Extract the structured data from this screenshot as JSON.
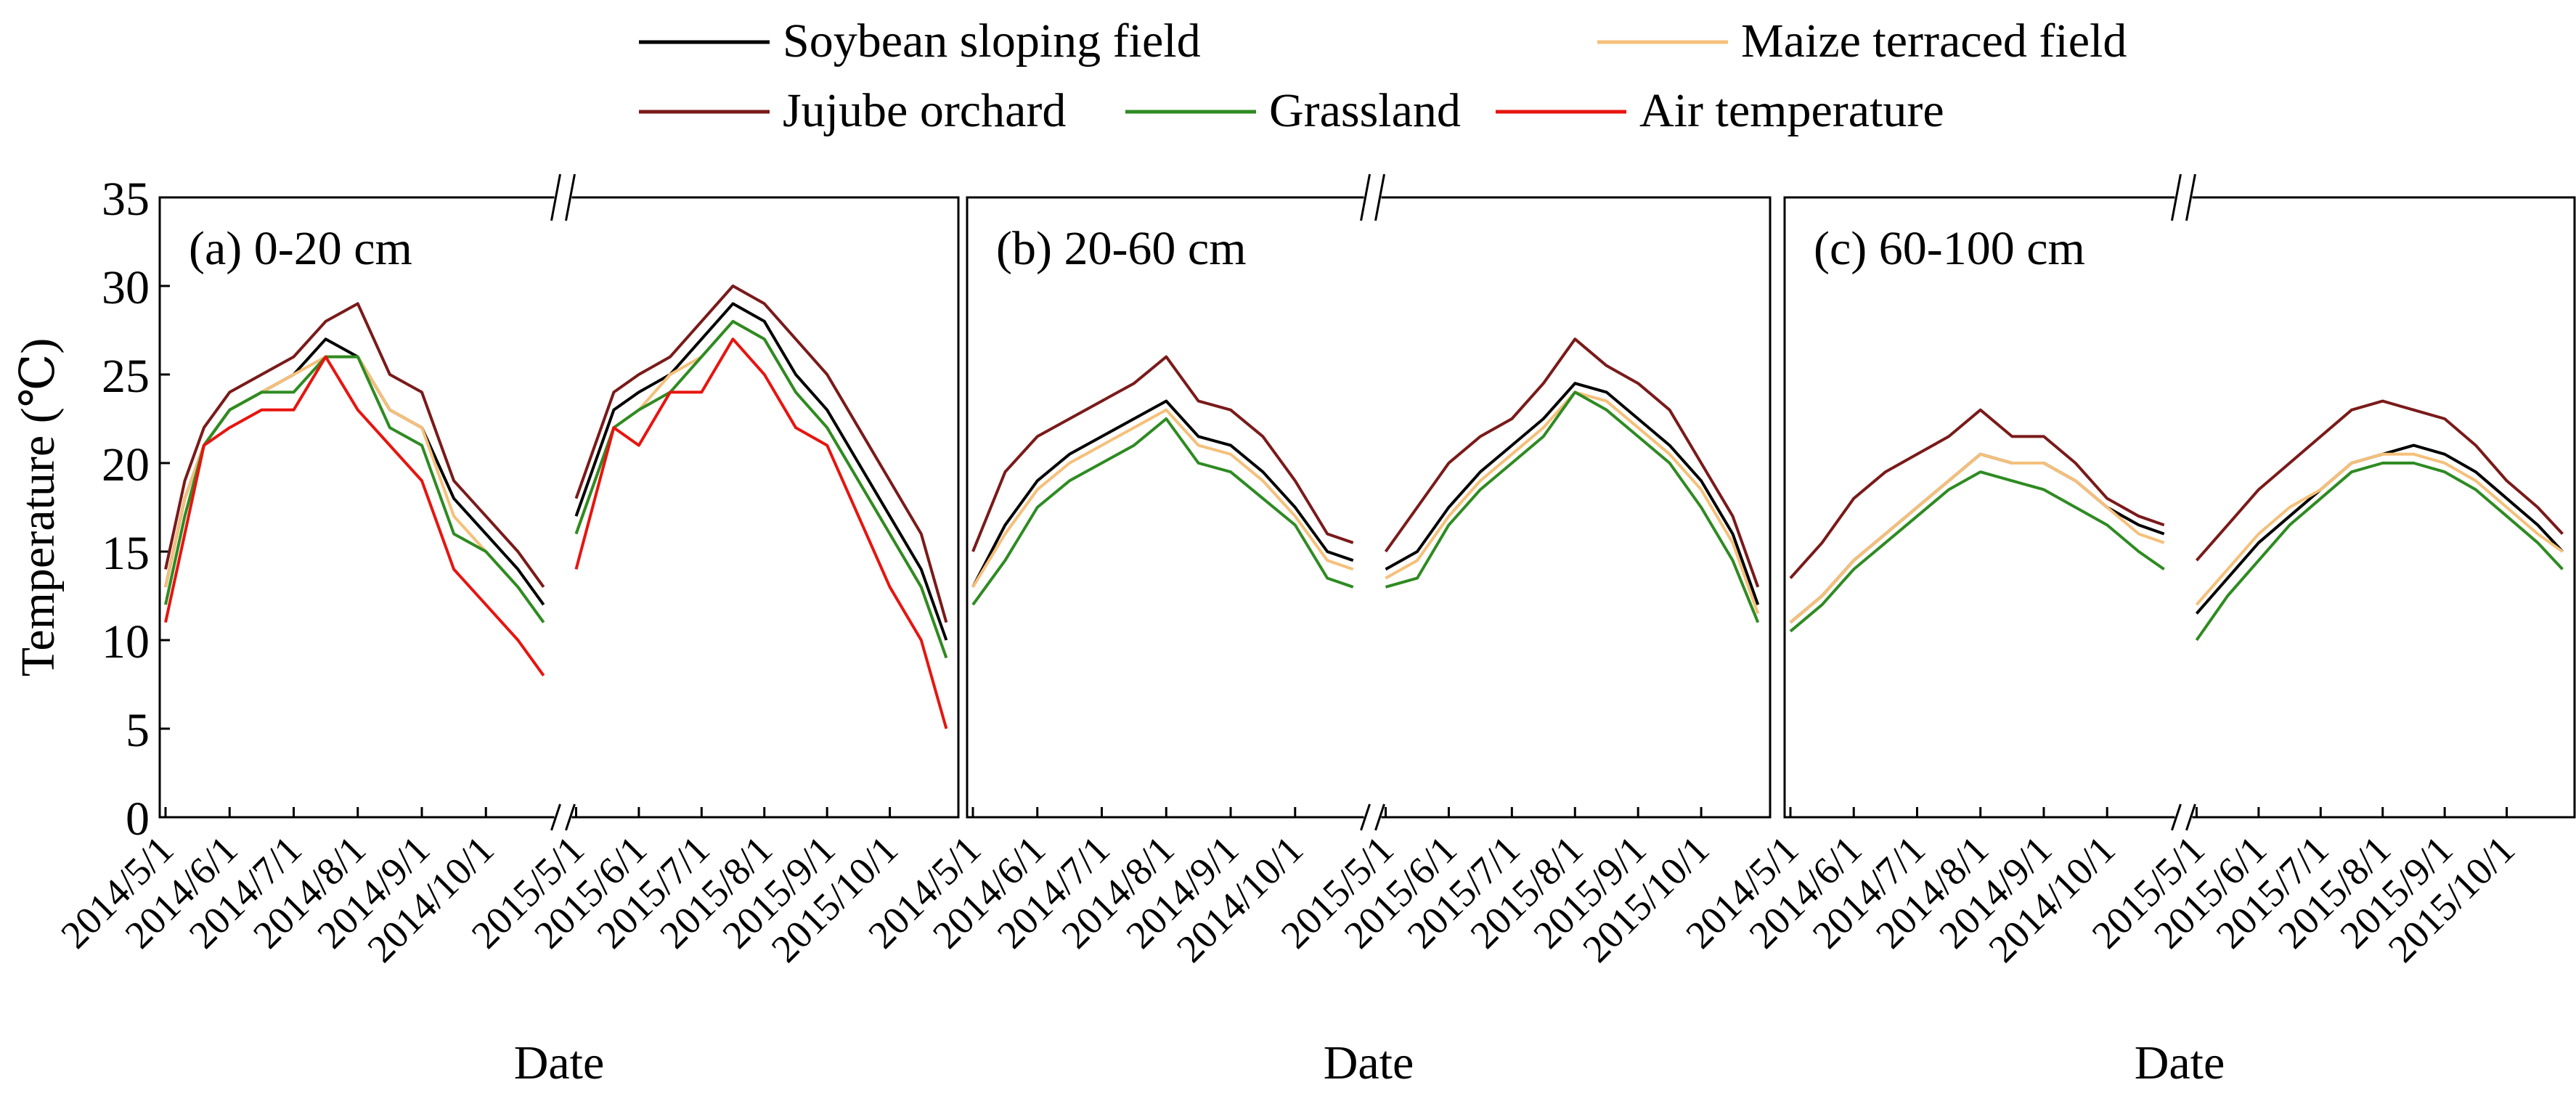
{
  "legend": {
    "items": [
      {
        "name": "Soybean sloping field",
        "color": "#000000"
      },
      {
        "name": "Maize terraced field",
        "color": "#f5c07a"
      },
      {
        "name": "Jujube orchard",
        "color": "#7a1a1a"
      },
      {
        "name": "Grassland",
        "color": "#2e8b22"
      },
      {
        "name": "Air temperature",
        "color": "#e8140f"
      }
    ]
  },
  "chart_data": [
    {
      "type": "line",
      "title": "(a) 0-20 cm",
      "xlabel": "Date",
      "ylabel": "Temperature (℃)",
      "ylim": [
        0,
        35
      ],
      "yticks": [
        0,
        5,
        10,
        15,
        20,
        25,
        30,
        35
      ],
      "xticks_2014": [
        "2014/5/1",
        "2014/6/1",
        "2014/7/1",
        "2014/8/1",
        "2014/9/1",
        "2014/10/1"
      ],
      "xticks_2015": [
        "2015/5/1",
        "2015/6/1",
        "2015/7/1",
        "2015/8/1",
        "2015/9/1",
        "2015/10/1"
      ],
      "x_note": "anchor points at months from 2014/5/1; axis broken between 2014/10/31 and 2015/5/1",
      "series": [
        {
          "name": "Soybean sloping field",
          "x": [
            0,
            0.3,
            0.6,
            1,
            1.5,
            2,
            2.5,
            3,
            3.5,
            4,
            4.5,
            5,
            5.5,
            5.9
          ],
          "y_2014": [
            13,
            18,
            21,
            23,
            24,
            25,
            27,
            26,
            23,
            22,
            18,
            16,
            14,
            12
          ],
          "y_2015": [
            17,
            20,
            23,
            24,
            25,
            27,
            29,
            28,
            25,
            23,
            20,
            17,
            14,
            10
          ]
        },
        {
          "name": "Maize terraced field",
          "x": [
            0,
            0.3,
            0.6,
            1,
            1.5,
            2,
            2.5,
            3,
            3.5,
            4,
            4.5,
            5,
            5.5,
            5.9
          ],
          "y_2014": [
            13,
            18,
            21,
            23,
            24,
            25,
            26,
            26,
            23,
            22,
            17,
            15,
            13,
            11
          ],
          "y_2015": [
            16,
            19,
            22,
            23,
            25,
            26,
            28,
            27,
            24,
            22,
            19,
            16,
            13,
            9
          ]
        },
        {
          "name": "Jujube orchard",
          "x": [
            0,
            0.3,
            0.6,
            1,
            1.5,
            2,
            2.5,
            3,
            3.5,
            4,
            4.5,
            5,
            5.5,
            5.9
          ],
          "y_2014": [
            14,
            19,
            22,
            24,
            25,
            26,
            28,
            29,
            25,
            24,
            19,
            17,
            15,
            13
          ],
          "y_2015": [
            18,
            21,
            24,
            25,
            26,
            28,
            30,
            29,
            27,
            25,
            22,
            19,
            16,
            11
          ]
        },
        {
          "name": "Grassland",
          "x": [
            0,
            0.3,
            0.6,
            1,
            1.5,
            2,
            2.5,
            3,
            3.5,
            4,
            4.5,
            5,
            5.5,
            5.9
          ],
          "y_2014": [
            12,
            17,
            21,
            23,
            24,
            24,
            26,
            26,
            22,
            21,
            16,
            15,
            13,
            11
          ],
          "y_2015": [
            16,
            19,
            22,
            23,
            24,
            26,
            28,
            27,
            24,
            22,
            19,
            16,
            13,
            9
          ]
        },
        {
          "name": "Air temperature",
          "x": [
            0,
            0.3,
            0.6,
            1,
            1.5,
            2,
            2.5,
            3,
            3.5,
            4,
            4.5,
            5,
            5.5,
            5.9
          ],
          "y_2014": [
            11,
            16,
            21,
            22,
            23,
            23,
            26,
            23,
            21,
            19,
            14,
            12,
            10,
            8
          ],
          "y_2015": [
            14,
            18,
            22,
            21,
            24,
            24,
            27,
            25,
            22,
            21,
            17,
            13,
            10,
            5
          ]
        }
      ]
    },
    {
      "type": "line",
      "title": "(b) 20-60 cm",
      "xlabel": "Date",
      "ylim": [
        0,
        35
      ],
      "xticks_2014": [
        "2014/5/1",
        "2014/6/1",
        "2014/7/1",
        "2014/8/1",
        "2014/9/1",
        "2014/10/1"
      ],
      "xticks_2015": [
        "2015/5/1",
        "2015/6/1",
        "2015/7/1",
        "2015/8/1",
        "2015/9/1",
        "2015/10/1"
      ],
      "series": [
        {
          "name": "Soybean sloping field",
          "x": [
            0,
            0.5,
            1,
            1.5,
            2,
            2.5,
            3,
            3.5,
            4,
            4.5,
            5,
            5.5,
            5.9
          ],
          "y_2014": [
            13,
            16.5,
            19,
            20.5,
            21.5,
            22.5,
            23.5,
            21.5,
            21,
            19.5,
            17.5,
            15,
            14.5
          ],
          "y_2015": [
            14,
            15,
            17.5,
            19.5,
            21,
            22.5,
            24.5,
            24,
            22.5,
            21,
            19,
            16,
            12
          ]
        },
        {
          "name": "Maize terraced field",
          "x": [
            0,
            0.5,
            1,
            1.5,
            2,
            2.5,
            3,
            3.5,
            4,
            4.5,
            5,
            5.5,
            5.9
          ],
          "y_2014": [
            13,
            16,
            18.5,
            20,
            21,
            22,
            23,
            21,
            20.5,
            19,
            17,
            14.5,
            14
          ],
          "y_2015": [
            13.5,
            14.5,
            17,
            19,
            20.5,
            22,
            24,
            23.5,
            22,
            20.5,
            18.5,
            15.5,
            11.5
          ]
        },
        {
          "name": "Jujube orchard",
          "x": [
            0,
            0.5,
            1,
            1.5,
            2,
            2.5,
            3,
            3.5,
            4,
            4.5,
            5,
            5.5,
            5.9
          ],
          "y_2014": [
            15,
            19.5,
            21.5,
            22.5,
            23.5,
            24.5,
            26,
            23.5,
            23,
            21.5,
            19,
            16,
            15.5
          ],
          "y_2015": [
            15,
            17.5,
            20,
            21.5,
            22.5,
            24.5,
            27,
            25.5,
            24.5,
            23,
            20,
            17,
            13
          ]
        },
        {
          "name": "Grassland",
          "x": [
            0,
            0.5,
            1,
            1.5,
            2,
            2.5,
            3,
            3.5,
            4,
            4.5,
            5,
            5.5,
            5.9
          ],
          "y_2014": [
            12,
            14.5,
            17.5,
            19,
            20,
            21,
            22.5,
            20,
            19.5,
            18,
            16.5,
            13.5,
            13
          ],
          "y_2015": [
            13,
            13.5,
            16.5,
            18.5,
            20,
            21.5,
            24,
            23,
            21.5,
            20,
            17.5,
            14.5,
            11
          ]
        }
      ]
    },
    {
      "type": "line",
      "title": "(c) 60-100 cm",
      "xlabel": "Date",
      "ylim": [
        0,
        35
      ],
      "xticks_2014": [
        "2014/5/1",
        "2014/6/1",
        "2014/7/1",
        "2014/8/1",
        "2014/9/1",
        "2014/10/1"
      ],
      "xticks_2015": [
        "2015/5/1",
        "2015/6/1",
        "2015/7/1",
        "2015/8/1",
        "2015/9/1",
        "2015/10/1"
      ],
      "series": [
        {
          "name": "Soybean sloping field",
          "x": [
            0,
            0.5,
            1,
            1.5,
            2,
            2.5,
            3,
            3.5,
            4,
            4.5,
            5,
            5.5,
            5.9
          ],
          "y_2014": [
            11,
            12.5,
            14.5,
            16,
            17.5,
            19,
            20.5,
            20,
            20,
            19,
            17.5,
            16.5,
            16
          ],
          "y_2015": [
            11.5,
            13.5,
            15.5,
            17,
            18.5,
            20,
            20.5,
            21,
            20.5,
            19.5,
            18,
            16.5,
            15
          ]
        },
        {
          "name": "Maize terraced field",
          "x": [
            0,
            0.5,
            1,
            1.5,
            2,
            2.5,
            3,
            3.5,
            4,
            4.5,
            5,
            5.5,
            5.9
          ],
          "y_2014": [
            11,
            12.5,
            14.5,
            16,
            17.5,
            19,
            20.5,
            20,
            20,
            19,
            17.5,
            16,
            15.5
          ],
          "y_2015": [
            12,
            14,
            16,
            17.5,
            18.5,
            20,
            20.5,
            20.5,
            20,
            19,
            17.5,
            16,
            15
          ]
        },
        {
          "name": "Jujube orchard",
          "x": [
            0,
            0.5,
            1,
            1.5,
            2,
            2.5,
            3,
            3.5,
            4,
            4.5,
            5,
            5.5,
            5.9
          ],
          "y_2014": [
            13.5,
            15.5,
            18,
            19.5,
            20.5,
            21.5,
            23,
            21.5,
            21.5,
            20,
            18,
            17,
            16.5
          ],
          "y_2015": [
            14.5,
            16.5,
            18.5,
            20,
            21.5,
            23,
            23.5,
            23,
            22.5,
            21,
            19,
            17.5,
            16
          ]
        },
        {
          "name": "Grassland",
          "x": [
            0,
            0.5,
            1,
            1.5,
            2,
            2.5,
            3,
            3.5,
            4,
            4.5,
            5,
            5.5,
            5.9
          ],
          "y_2014": [
            10.5,
            12,
            14,
            15.5,
            17,
            18.5,
            19.5,
            19,
            18.5,
            17.5,
            16.5,
            15,
            14
          ],
          "y_2015": [
            10,
            12.5,
            14.5,
            16.5,
            18,
            19.5,
            20,
            20,
            19.5,
            18.5,
            17,
            15.5,
            14
          ]
        }
      ]
    }
  ]
}
